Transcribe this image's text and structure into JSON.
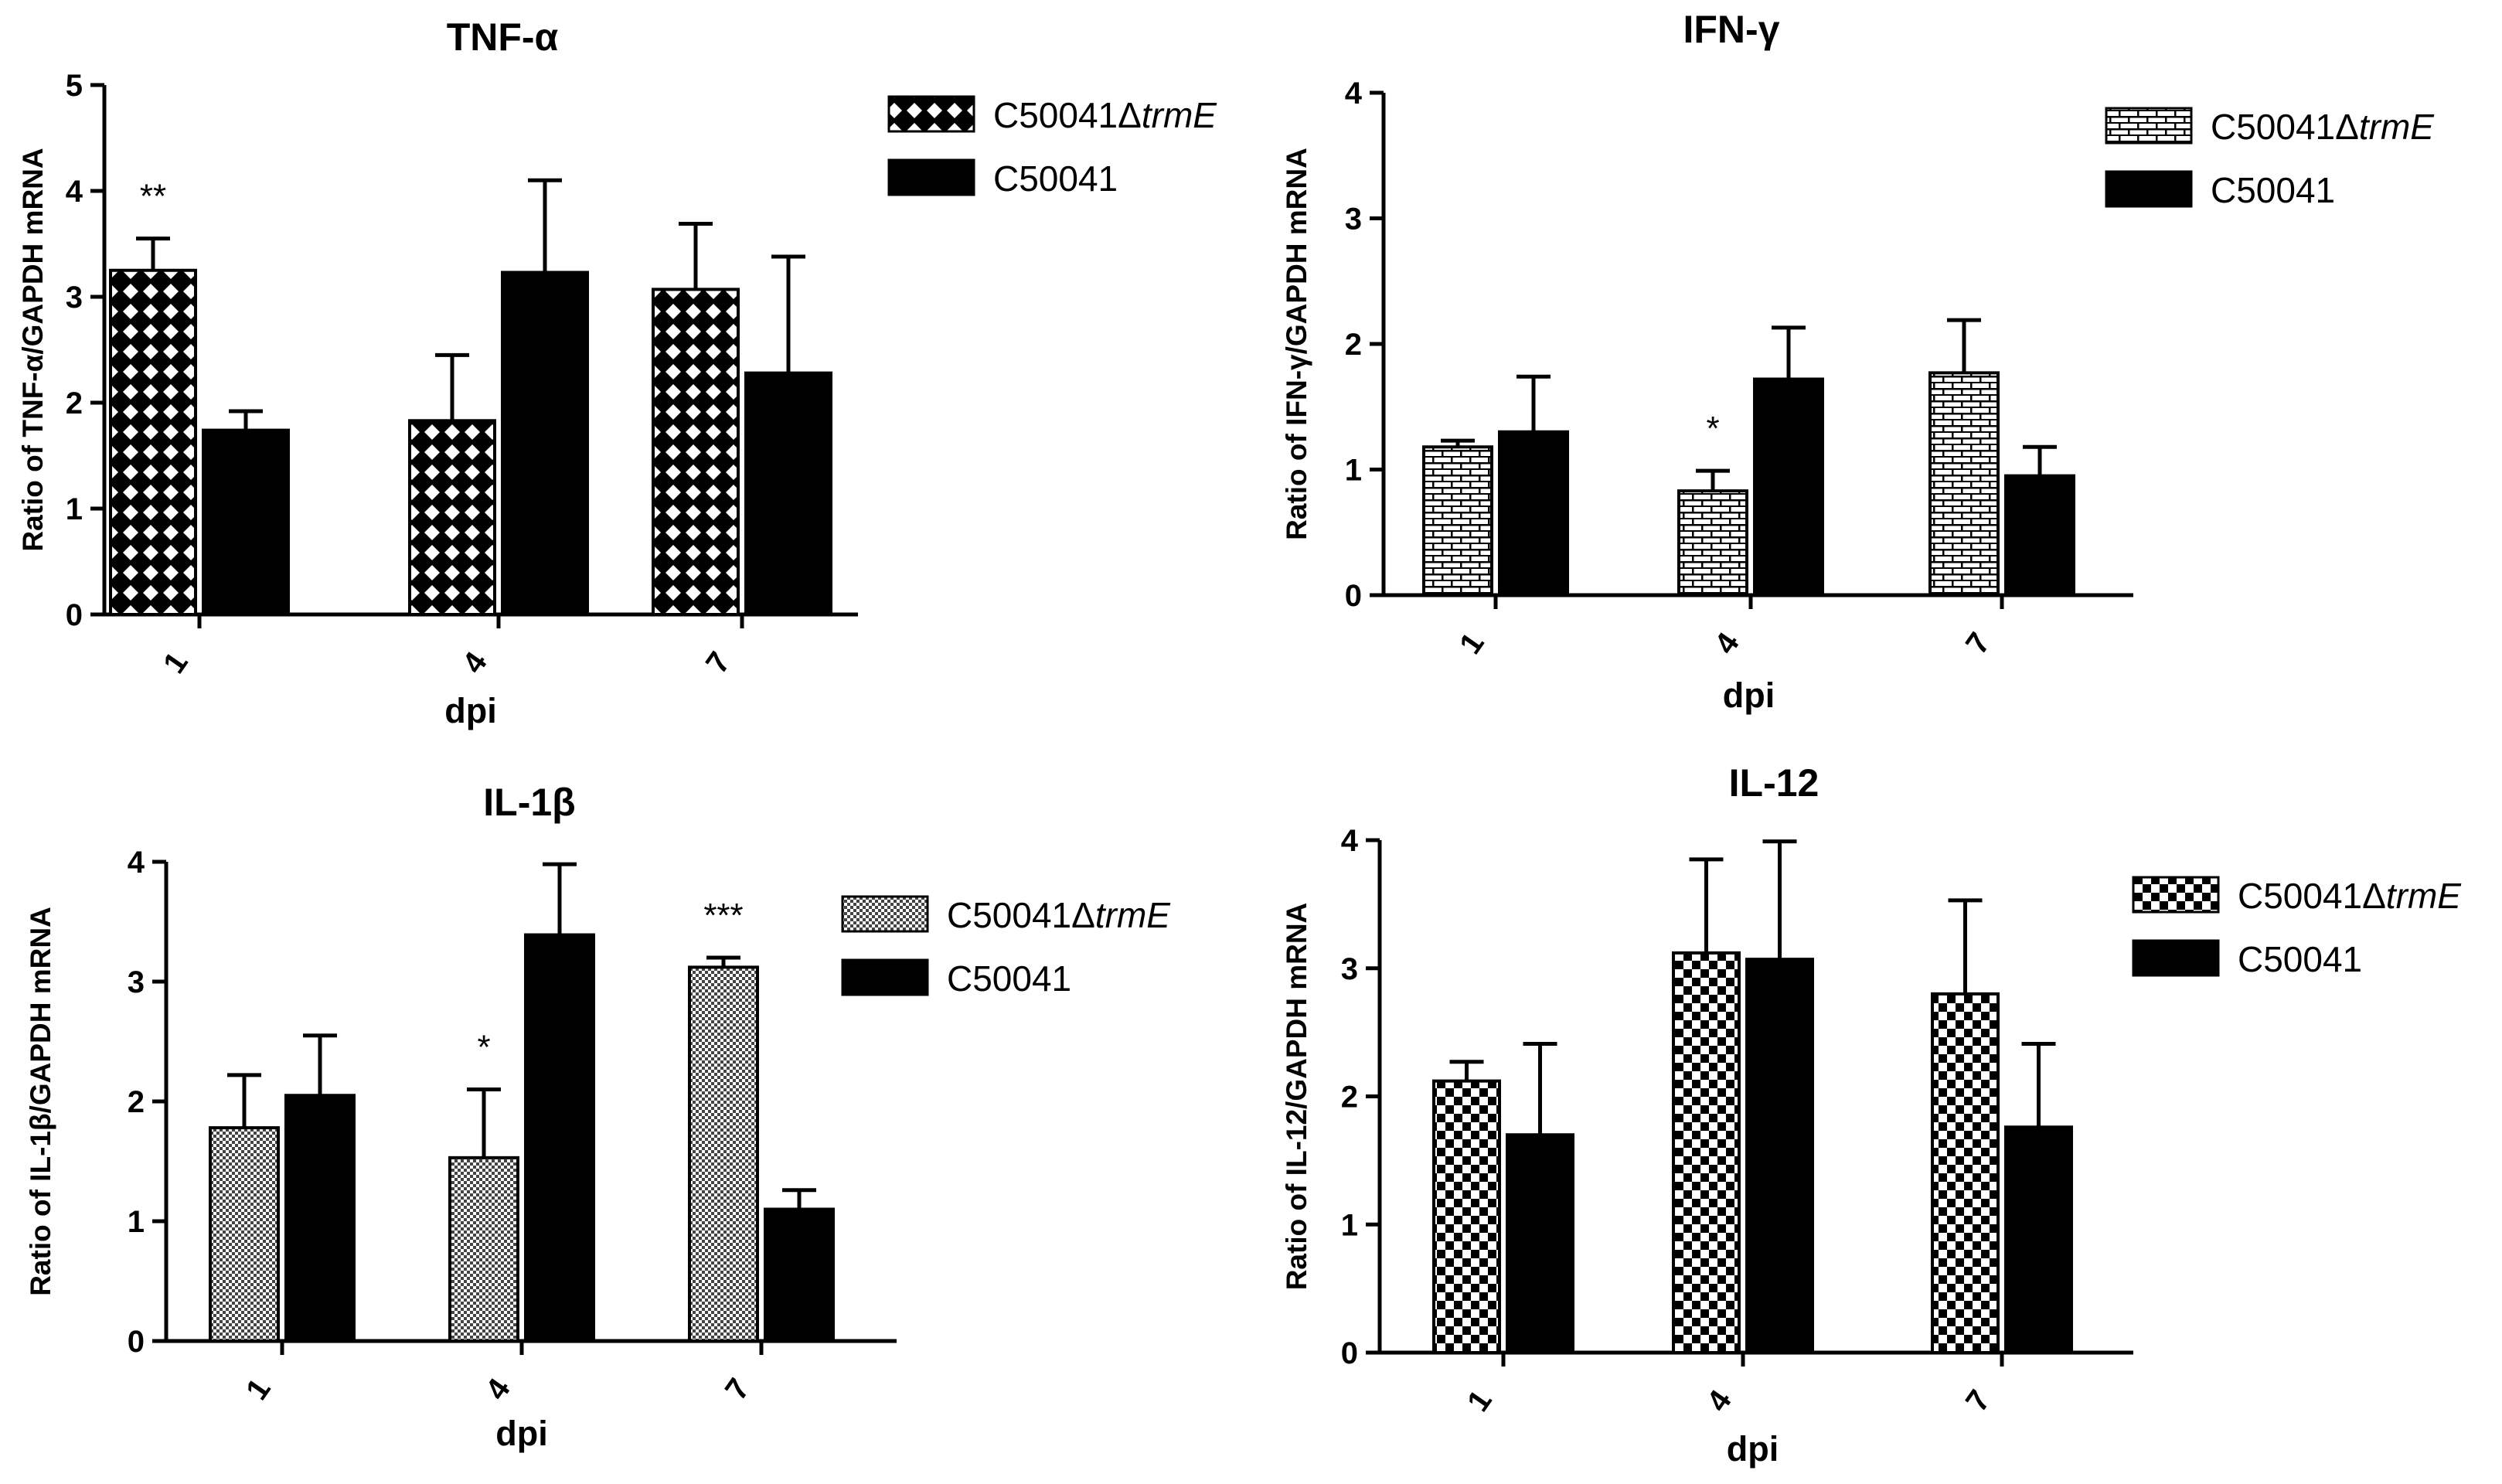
{
  "chart_data": [
    {
      "type": "bar",
      "title": "TNF-α",
      "xlabel": "dpi",
      "ylabel": "Ratio of TNF-α/GAPDH mRNA",
      "ylim": [
        0,
        5
      ],
      "yticks": [
        0,
        1,
        2,
        3,
        4,
        5
      ],
      "categories": [
        "1",
        "4",
        "7"
      ],
      "pattern": "crosshatch",
      "series": [
        {
          "name": "C50041ΔtrmE",
          "name_plain": "C50041Δ",
          "name_italic": "trmE",
          "values": [
            3.25,
            1.83,
            3.07
          ],
          "errors": [
            0.3,
            0.62,
            0.62
          ]
        },
        {
          "name": "C50041",
          "values": [
            1.74,
            3.23,
            2.28
          ],
          "errors": [
            0.18,
            0.87,
            1.1
          ]
        }
      ],
      "annotations": [
        {
          "category": "1",
          "series": 0,
          "text": "**"
        }
      ]
    },
    {
      "type": "bar",
      "title": "IFN-γ",
      "xlabel": "dpi",
      "ylabel": "Ratio of IFN-γ/GAPDH mRNA",
      "ylim": [
        0,
        4
      ],
      "yticks": [
        0,
        1,
        2,
        3,
        4
      ],
      "categories": [
        "1",
        "4",
        "7"
      ],
      "pattern": "brick",
      "series": [
        {
          "name": "C50041ΔtrmE",
          "name_plain": "C50041Δ",
          "name_italic": "trmE",
          "values": [
            1.18,
            0.83,
            1.77
          ],
          "errors": [
            0.05,
            0.16,
            0.42
          ]
        },
        {
          "name": "C50041",
          "values": [
            1.3,
            1.72,
            0.95
          ],
          "errors": [
            0.44,
            0.41,
            0.23
          ]
        }
      ],
      "annotations": [
        {
          "category": "4",
          "series": 0,
          "text": "*"
        }
      ]
    },
    {
      "type": "bar",
      "title": "IL-1β",
      "xlabel": "dpi",
      "ylabel": "Ratio of IL-1β/GAPDH mRNA",
      "ylim": [
        0,
        4
      ],
      "yticks": [
        0,
        1,
        2,
        3,
        4
      ],
      "categories": [
        "1",
        "4",
        "7"
      ],
      "pattern": "fine",
      "series": [
        {
          "name": "C50041ΔtrmE",
          "name_plain": "C50041Δ",
          "name_italic": "trmE",
          "values": [
            1.78,
            1.53,
            3.12
          ],
          "errors": [
            0.44,
            0.57,
            0.08
          ]
        },
        {
          "name": "C50041",
          "values": [
            2.05,
            3.39,
            1.1
          ],
          "errors": [
            0.5,
            0.59,
            0.16
          ]
        }
      ],
      "annotations": [
        {
          "category": "4",
          "series": 0,
          "text": "*"
        },
        {
          "category": "7",
          "series": 0,
          "text": "***"
        }
      ]
    },
    {
      "type": "bar",
      "title": "IL-12",
      "xlabel": "dpi",
      "ylabel": "Ratio of IL-12/GAPDH mRNA",
      "ylim": [
        0,
        4
      ],
      "yticks": [
        0,
        1,
        2,
        3,
        4
      ],
      "categories": [
        "1",
        "4",
        "7"
      ],
      "pattern": "checker",
      "series": [
        {
          "name": "C50041ΔtrmE",
          "name_plain": "C50041Δ",
          "name_italic": "trmE",
          "values": [
            2.12,
            3.12,
            2.8
          ],
          "errors": [
            0.15,
            0.73,
            0.73
          ]
        },
        {
          "name": "C50041",
          "values": [
            1.7,
            3.07,
            1.76
          ],
          "errors": [
            0.71,
            0.92,
            0.65
          ]
        }
      ],
      "annotations": []
    }
  ]
}
